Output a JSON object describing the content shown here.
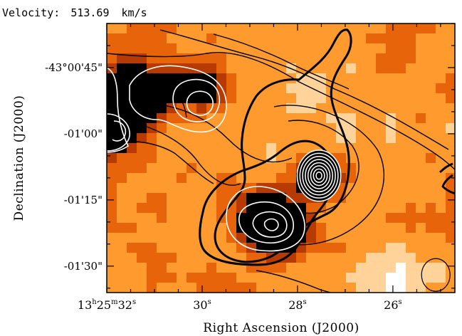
{
  "header": {
    "velocity_label": "Velocity:",
    "velocity_value": "513.69",
    "velocity_unit": "km/s"
  },
  "chart_data": {
    "type": "heatmap",
    "title": "",
    "xlabel": "Right Ascension (J2000)",
    "ylabel": "Declination (J2000)",
    "x_ticks": [
      {
        "ra_sec": 32,
        "text": "13h25m32s",
        "parts": [
          "13",
          "h",
          "25",
          "m",
          "32",
          "s"
        ]
      },
      {
        "ra_sec": 30,
        "text": "30s",
        "parts": [
          "30",
          "s"
        ]
      },
      {
        "ra_sec": 28,
        "text": "28s",
        "parts": [
          "28",
          "s"
        ]
      },
      {
        "ra_sec": 26,
        "text": "26s",
        "parts": [
          "26",
          "s"
        ]
      }
    ],
    "y_ticks": [
      {
        "dec_arcsec": -45,
        "text": "-43°00'45\""
      },
      {
        "dec_arcsec": -60,
        "text": "-01'00\""
      },
      {
        "dec_arcsec": -75,
        "text": "-01'15\""
      },
      {
        "dec_arcsec": -90,
        "text": "-01'30\""
      }
    ],
    "ra_range": [
      32.0,
      24.7
    ],
    "dec_range": [
      -96.0,
      -35.0
    ],
    "colormap": [
      "#ffffff",
      "#ffd39a",
      "#ff9a2e",
      "#e8640a",
      "#b63a02",
      "#000000"
    ],
    "grid": false,
    "contour_colors": {
      "white": "#ffffff",
      "black": "#000000"
    },
    "emission_peaks": [
      {
        "ra_sec": 30.05,
        "dec_arcsec": -49.5,
        "level": "high"
      },
      {
        "ra_sec": 31.9,
        "dec_arcsec": -59.5,
        "level": "high"
      },
      {
        "ra_sec": 27.55,
        "dec_arcsec": -69.5,
        "level": "high"
      },
      {
        "ra_sec": 28.45,
        "dec_arcsec": -81.5,
        "level": "high"
      }
    ],
    "beam": {
      "ra_sec": 25.1,
      "dec_arcsec": -92.0
    }
  }
}
